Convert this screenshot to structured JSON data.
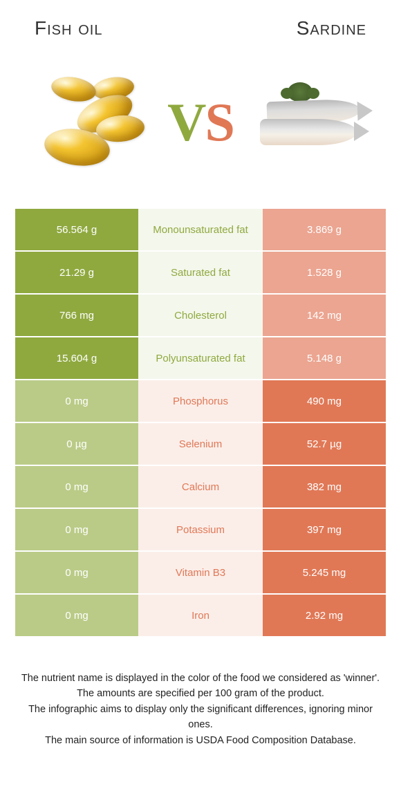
{
  "header": {
    "left_title": "Fish oil",
    "right_title": "Sardine",
    "vs_v": "V",
    "vs_s": "S"
  },
  "colors": {
    "left_win": "#8fa93f",
    "left_lose": "#bacb87",
    "right_win": "#e07856",
    "right_lose": "#eba591",
    "mid_bg_left": "#f4f7ec",
    "mid_bg_right": "#fbeee9"
  },
  "rows": [
    {
      "left": "56.564 g",
      "label": "Monounsaturated fat",
      "right": "3.869 g",
      "winner": "left"
    },
    {
      "left": "21.29 g",
      "label": "Saturated fat",
      "right": "1.528 g",
      "winner": "left"
    },
    {
      "left": "766 mg",
      "label": "Cholesterol",
      "right": "142 mg",
      "winner": "left"
    },
    {
      "left": "15.604 g",
      "label": "Polyunsaturated fat",
      "right": "5.148 g",
      "winner": "left"
    },
    {
      "left": "0 mg",
      "label": "Phosphorus",
      "right": "490 mg",
      "winner": "right"
    },
    {
      "left": "0 µg",
      "label": "Selenium",
      "right": "52.7 µg",
      "winner": "right"
    },
    {
      "left": "0 mg",
      "label": "Calcium",
      "right": "382 mg",
      "winner": "right"
    },
    {
      "left": "0 mg",
      "label": "Potassium",
      "right": "397 mg",
      "winner": "right"
    },
    {
      "left": "0 mg",
      "label": "Vitamin B3",
      "right": "5.245 mg",
      "winner": "right"
    },
    {
      "left": "0 mg",
      "label": "Iron",
      "right": "2.92 mg",
      "winner": "right"
    }
  ],
  "footnotes": {
    "line1": "The nutrient name is displayed in the color of the food we considered as 'winner'.",
    "line2": "The amounts are specified per 100 gram of the product.",
    "line3": "The infographic aims to display only the significant differences, ignoring minor ones.",
    "line4": "The main source of information is USDA Food Composition Database."
  }
}
